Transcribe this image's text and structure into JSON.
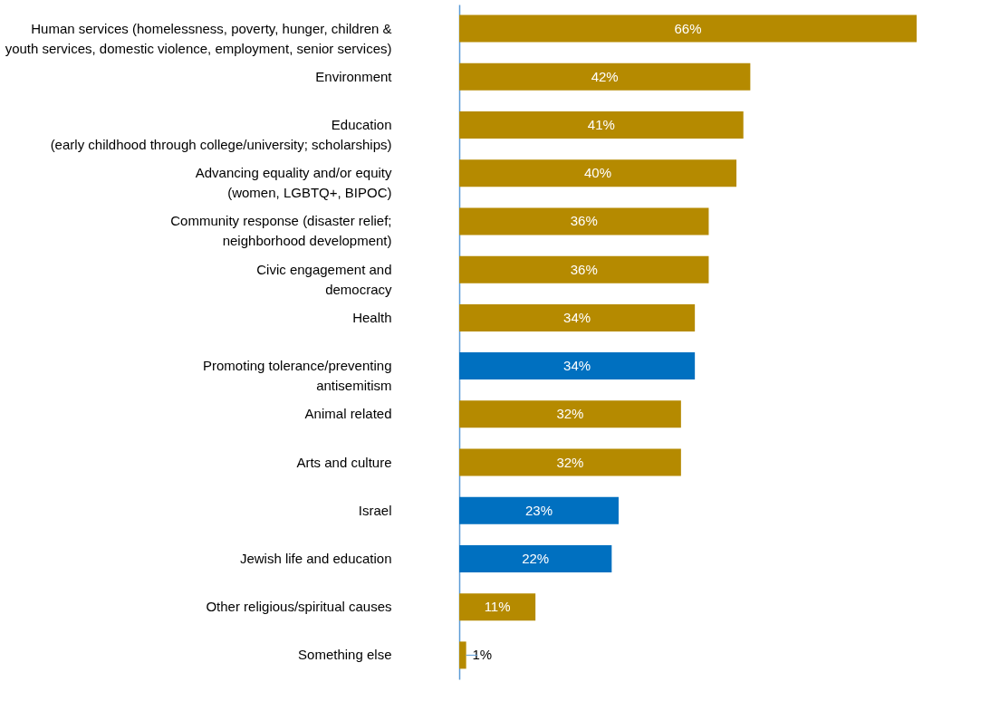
{
  "chart_data": {
    "type": "bar",
    "orientation": "horizontal",
    "categories": [
      "Human services (homelessness, poverty, hunger, children &\nyouth services, domestic violence, employment, senior services)",
      "Environment",
      "Education\n(early childhood through college/university; scholarships)",
      "Advancing equality and/or equity\n(women, LGBTQ+, BIPOC)",
      "Community response (disaster relief;\nneighborhood development)",
      "Civic engagement and\ndemocracy",
      "Health",
      "Promoting tolerance/preventing\nantisemitism",
      "Animal related",
      "Arts and culture",
      "Israel",
      "Jewish life and education",
      "Other religious/spiritual causes",
      "Something else"
    ],
    "values": [
      66,
      42,
      41,
      40,
      36,
      36,
      34,
      34,
      32,
      32,
      23,
      22,
      11,
      1
    ],
    "value_labels": [
      "66%",
      "42%",
      "41%",
      "40%",
      "36%",
      "36%",
      "34%",
      "34%",
      "32%",
      "32%",
      "23%",
      "22%",
      "11%",
      "1%"
    ],
    "colors": [
      "#b58a00",
      "#b58a00",
      "#b58a00",
      "#b58a00",
      "#b58a00",
      "#b58a00",
      "#b58a00",
      "#0070c0",
      "#b58a00",
      "#b58a00",
      "#0070c0",
      "#0070c0",
      "#b58a00",
      "#b58a00"
    ]
  }
}
